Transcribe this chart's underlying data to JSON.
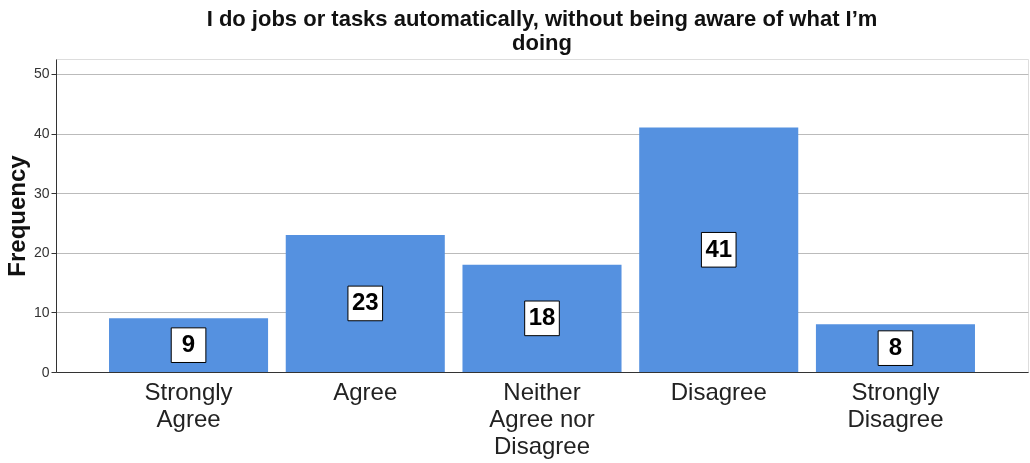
{
  "chart_data": {
    "type": "bar",
    "title": "I do jobs or tasks automatically, without being aware of what I’m doing",
    "ylabel": "Frequency",
    "categories": [
      "Strongly Agree",
      "Agree",
      "Neither Agree nor Disagree",
      "Disagree",
      "Strongly Disagree"
    ],
    "values": [
      9,
      23,
      18,
      41,
      8
    ],
    "color": "#5591e0",
    "ylim": [
      0,
      52.5
    ],
    "yticks": [
      0,
      10,
      20,
      30,
      40,
      50
    ],
    "grid": "y",
    "data_labels": true
  }
}
